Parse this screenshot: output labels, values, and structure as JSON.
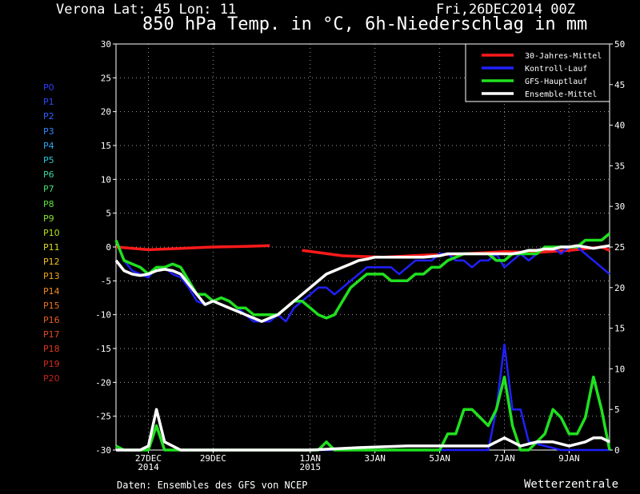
{
  "header": {
    "location": "Verona   Lat: 45 Lon: 11",
    "date": "Fri,26DEC2014 00Z",
    "title": "850 hPa Temp. in °C, 6h-Niederschlag in mm"
  },
  "footer": {
    "source": "Daten: Ensembles des GFS von NCEP",
    "brand": "Wetterzentrale"
  },
  "members": [
    {
      "label": "P0",
      "color": "#2b3bff"
    },
    {
      "label": "P1",
      "color": "#2f48ff"
    },
    {
      "label": "P2",
      "color": "#3060ff"
    },
    {
      "label": "P3",
      "color": "#2f86ff"
    },
    {
      "label": "P4",
      "color": "#2aa8f0"
    },
    {
      "label": "P5",
      "color": "#2bc6d8"
    },
    {
      "label": "P6",
      "color": "#35d8a0"
    },
    {
      "label": "P7",
      "color": "#44e070"
    },
    {
      "label": "P8",
      "color": "#5ee23e"
    },
    {
      "label": "P9",
      "color": "#86e22a"
    },
    {
      "label": "P10",
      "color": "#b4e21f"
    },
    {
      "label": "P11",
      "color": "#ddd91a"
    },
    {
      "label": "P12",
      "color": "#eec01a"
    },
    {
      "label": "P13",
      "color": "#f2a31a"
    },
    {
      "label": "P14",
      "color": "#f28a1c"
    },
    {
      "label": "P15",
      "color": "#ee731e"
    },
    {
      "label": "P16",
      "color": "#e95f20"
    },
    {
      "label": "P17",
      "color": "#e34b20"
    },
    {
      "label": "P18",
      "color": "#da3a1f"
    },
    {
      "label": "P19",
      "color": "#cf2d1d"
    },
    {
      "label": "P20",
      "color": "#c2231b"
    }
  ],
  "chart_data": {
    "type": "line",
    "grid": true,
    "legend_position": "top-right",
    "x_range": [
      0,
      61
    ],
    "x_unit": "6-hourly steps from 26DEC2014 00Z",
    "ylim_left": [
      -30,
      30
    ],
    "ylim_right": [
      0,
      50
    ],
    "yticks_left": [
      "30",
      "25",
      "20",
      "15",
      "10",
      "5",
      "0",
      "-5",
      "-10",
      "-15",
      "-20",
      "-25",
      "-30"
    ],
    "yticks_right": [
      "50",
      "45",
      "40",
      "35",
      "30",
      "25",
      "20",
      "15",
      "10",
      "5",
      "0"
    ],
    "xticks": [
      {
        "x": 4,
        "line1": "27DEC",
        "line2": "2014"
      },
      {
        "x": 12,
        "line1": "29DEC",
        "line2": ""
      },
      {
        "x": 24,
        "line1": "1JAN",
        "line2": "2015"
      },
      {
        "x": 32,
        "line1": "3JAN",
        "line2": ""
      },
      {
        "x": 40,
        "line1": "5JAN",
        "line2": ""
      },
      {
        "x": 48,
        "line1": "7JAN",
        "line2": ""
      },
      {
        "x": 56,
        "line1": "9JAN",
        "line2": ""
      }
    ],
    "legend": [
      {
        "label": "30-Jahres-Mittel",
        "color": "#ff1a1a"
      },
      {
        "label": "Kontroll-Lauf",
        "color": "#2020ff"
      },
      {
        "label": "GFS-Hauptlauf",
        "color": "#20e020"
      },
      {
        "label": "Ensemble-Mittel",
        "color": "#ffffff"
      }
    ],
    "temperature_series": [
      {
        "name": "30-Jahres-Mittel",
        "color": "#ff1a1a",
        "width": 3.5,
        "points": [
          [
            0,
            0
          ],
          [
            4,
            -0.4
          ],
          [
            8,
            -0.2
          ],
          [
            12,
            0
          ],
          [
            16,
            0.1
          ],
          [
            19,
            0.2
          ],
          [
            null,
            null
          ],
          [
            23,
            -0.5
          ],
          [
            28,
            -1.3
          ],
          [
            33,
            -1.5
          ],
          [
            38,
            -1.2
          ],
          [
            43,
            -1
          ],
          [
            48,
            -0.7
          ],
          [
            52,
            -0.8
          ],
          [
            56,
            -0.5
          ],
          [
            60,
            0
          ],
          [
            61,
            -0.5
          ]
        ]
      },
      {
        "name": "Kontroll-Lauf",
        "color": "#2020ff",
        "width": 2.5,
        "points": [
          [
            0,
            1
          ],
          [
            1,
            -2
          ],
          [
            2,
            -3.5
          ],
          [
            3,
            -4
          ],
          [
            4,
            -4.5
          ],
          [
            5,
            -3
          ],
          [
            6,
            -3
          ],
          [
            7,
            -4
          ],
          [
            8,
            -4.5
          ],
          [
            9,
            -6
          ],
          [
            10,
            -8
          ],
          [
            11,
            -8.5
          ],
          [
            12,
            -8
          ],
          [
            13,
            -7.5
          ],
          [
            14,
            -8
          ],
          [
            15,
            -9
          ],
          [
            16,
            -10
          ],
          [
            17,
            -11
          ],
          [
            18,
            -11
          ],
          [
            19,
            -11
          ],
          [
            20,
            -10
          ],
          [
            21,
            -11
          ],
          [
            22,
            -9
          ],
          [
            23,
            -8
          ],
          [
            24,
            -7
          ],
          [
            25,
            -6
          ],
          [
            26,
            -6
          ],
          [
            27,
            -7
          ],
          [
            28,
            -6
          ],
          [
            29,
            -5
          ],
          [
            30,
            -4
          ],
          [
            31,
            -3
          ],
          [
            32,
            -3
          ],
          [
            33,
            -3
          ],
          [
            34,
            -3
          ],
          [
            35,
            -4
          ],
          [
            36,
            -3
          ],
          [
            37,
            -2
          ],
          [
            38,
            -2
          ],
          [
            39,
            -2
          ],
          [
            40,
            -1
          ],
          [
            41,
            -1
          ],
          [
            42,
            -2
          ],
          [
            43,
            -2
          ],
          [
            44,
            -3
          ],
          [
            45,
            -2
          ],
          [
            46,
            -2
          ],
          [
            47,
            -1
          ],
          [
            48,
            -3
          ],
          [
            49,
            -2
          ],
          [
            50,
            -1
          ],
          [
            51,
            -2
          ],
          [
            52,
            -1
          ],
          [
            53,
            0
          ],
          [
            54,
            0
          ],
          [
            55,
            -1
          ],
          [
            56,
            0
          ],
          [
            57,
            0
          ],
          [
            58,
            -1
          ],
          [
            59,
            -2
          ],
          [
            60,
            -3
          ],
          [
            61,
            -4
          ]
        ]
      },
      {
        "name": "GFS-Hauptlauf",
        "color": "#20e020",
        "width": 3.5,
        "points": [
          [
            0,
            1
          ],
          [
            1,
            -2
          ],
          [
            2,
            -2.5
          ],
          [
            3,
            -3
          ],
          [
            4,
            -4
          ],
          [
            5,
            -3
          ],
          [
            6,
            -3
          ],
          [
            7,
            -2.5
          ],
          [
            8,
            -3
          ],
          [
            9,
            -5
          ],
          [
            10,
            -7
          ],
          [
            11,
            -7
          ],
          [
            12,
            -8
          ],
          [
            13,
            -7.5
          ],
          [
            14,
            -8
          ],
          [
            15,
            -9
          ],
          [
            16,
            -9
          ],
          [
            17,
            -10
          ],
          [
            18,
            -10
          ],
          [
            19,
            -10
          ],
          [
            20,
            -10
          ],
          [
            21,
            -9
          ],
          [
            22,
            -8
          ],
          [
            23,
            -8
          ],
          [
            24,
            -9
          ],
          [
            25,
            -10
          ],
          [
            26,
            -10.5
          ],
          [
            27,
            -10
          ],
          [
            28,
            -8
          ],
          [
            29,
            -6
          ],
          [
            30,
            -5
          ],
          [
            31,
            -4
          ],
          [
            32,
            -4
          ],
          [
            33,
            -4
          ],
          [
            34,
            -5
          ],
          [
            35,
            -5
          ],
          [
            36,
            -5
          ],
          [
            37,
            -4
          ],
          [
            38,
            -4
          ],
          [
            39,
            -3
          ],
          [
            40,
            -3
          ],
          [
            41,
            -2
          ],
          [
            42,
            -1.5
          ],
          [
            43,
            -1
          ],
          [
            44,
            -1
          ],
          [
            45,
            -1
          ],
          [
            46,
            -1
          ],
          [
            47,
            -2
          ],
          [
            48,
            -2
          ],
          [
            49,
            -1
          ],
          [
            50,
            -1
          ],
          [
            51,
            -1
          ],
          [
            52,
            -1
          ],
          [
            53,
            0
          ],
          [
            54,
            0
          ],
          [
            55,
            0
          ],
          [
            56,
            0
          ],
          [
            57,
            0
          ],
          [
            58,
            1
          ],
          [
            59,
            1
          ],
          [
            60,
            1
          ],
          [
            61,
            2
          ]
        ]
      },
      {
        "name": "Ensemble-Mittel",
        "color": "#ffffff",
        "width": 3.5,
        "points": [
          [
            0,
            -2
          ],
          [
            1,
            -3.5
          ],
          [
            2,
            -4
          ],
          [
            3,
            -4.2
          ],
          [
            4,
            -4
          ],
          [
            5,
            -3.5
          ],
          [
            6,
            -3.3
          ],
          [
            7,
            -3.5
          ],
          [
            8,
            -4
          ],
          [
            9,
            -5.5
          ],
          [
            10,
            -7
          ],
          [
            11,
            -8.5
          ],
          [
            12,
            -8
          ],
          [
            13,
            -8.5
          ],
          [
            14,
            -9
          ],
          [
            15,
            -9.5
          ],
          [
            16,
            -10
          ],
          [
            17,
            -10.5
          ],
          [
            18,
            -11
          ],
          [
            19,
            -10.5
          ],
          [
            20,
            -10
          ],
          [
            21,
            -9
          ],
          [
            22,
            -8
          ],
          [
            23,
            -7
          ],
          [
            24,
            -6
          ],
          [
            25,
            -5
          ],
          [
            26,
            -4
          ],
          [
            27,
            -3.5
          ],
          [
            28,
            -3
          ],
          [
            29,
            -2.5
          ],
          [
            30,
            -2
          ],
          [
            31,
            -1.8
          ],
          [
            32,
            -1.5
          ],
          [
            33,
            -1.5
          ],
          [
            34,
            -1.5
          ],
          [
            35,
            -1.5
          ],
          [
            36,
            -1.5
          ],
          [
            37,
            -1.5
          ],
          [
            38,
            -1.5
          ],
          [
            39,
            -1.4
          ],
          [
            40,
            -1.3
          ],
          [
            41,
            -1
          ],
          [
            42,
            -1
          ],
          [
            43,
            -1
          ],
          [
            44,
            -1
          ],
          [
            45,
            -1
          ],
          [
            46,
            -1
          ],
          [
            47,
            -1
          ],
          [
            48,
            -1
          ],
          [
            49,
            -1
          ],
          [
            50,
            -0.8
          ],
          [
            51,
            -0.5
          ],
          [
            52,
            -0.5
          ],
          [
            53,
            -0.3
          ],
          [
            54,
            -0.3
          ],
          [
            55,
            0
          ],
          [
            56,
            0
          ],
          [
            57,
            0.2
          ],
          [
            58,
            0
          ],
          [
            59,
            -0.2
          ],
          [
            60,
            0
          ],
          [
            61,
            0.2
          ]
        ]
      }
    ],
    "precipitation_series": [
      {
        "name": "Kontroll-Lauf",
        "color": "#2020ff",
        "width": 2.5,
        "points": [
          [
            0,
            0
          ],
          [
            4,
            0
          ],
          [
            5,
            3
          ],
          [
            6,
            0
          ],
          [
            7,
            0
          ],
          [
            30,
            0
          ],
          [
            40,
            0
          ],
          [
            46,
            0
          ],
          [
            47,
            5
          ],
          [
            48,
            13
          ],
          [
            49,
            5
          ],
          [
            50,
            5
          ],
          [
            51,
            1
          ],
          [
            55,
            0
          ],
          [
            61,
            0
          ]
        ]
      },
      {
        "name": "GFS-Hauptlauf",
        "color": "#20e020",
        "width": 3.5,
        "points": [
          [
            0,
            0.5
          ],
          [
            1,
            0
          ],
          [
            4,
            0
          ],
          [
            5,
            3
          ],
          [
            6,
            0
          ],
          [
            7,
            0
          ],
          [
            25,
            0
          ],
          [
            26,
            1
          ],
          [
            27,
            0
          ],
          [
            40,
            0
          ],
          [
            41,
            2
          ],
          [
            42,
            2
          ],
          [
            43,
            5
          ],
          [
            44,
            5
          ],
          [
            45,
            4
          ],
          [
            46,
            3
          ],
          [
            47,
            5
          ],
          [
            48,
            9
          ],
          [
            49,
            3
          ],
          [
            50,
            0
          ],
          [
            51,
            0
          ],
          [
            52,
            1
          ],
          [
            53,
            2
          ],
          [
            54,
            5
          ],
          [
            55,
            4
          ],
          [
            56,
            2
          ],
          [
            57,
            2
          ],
          [
            58,
            4
          ],
          [
            59,
            9
          ],
          [
            60,
            5
          ],
          [
            61,
            0
          ]
        ]
      },
      {
        "name": "Ensemble-Mittel",
        "color": "#ffffff",
        "width": 3.5,
        "points": [
          [
            0,
            0
          ],
          [
            3,
            0
          ],
          [
            4,
            0.5
          ],
          [
            5,
            5
          ],
          [
            6,
            1
          ],
          [
            7,
            0.5
          ],
          [
            8,
            0
          ],
          [
            24,
            0
          ],
          [
            30,
            0.3
          ],
          [
            36,
            0.5
          ],
          [
            42,
            0.5
          ],
          [
            46,
            0.5
          ],
          [
            47,
            1
          ],
          [
            48,
            1.5
          ],
          [
            49,
            1
          ],
          [
            50,
            0.5
          ],
          [
            52,
            1
          ],
          [
            54,
            1
          ],
          [
            56,
            0.5
          ],
          [
            58,
            1
          ],
          [
            59,
            1.5
          ],
          [
            60,
            1.5
          ],
          [
            61,
            1
          ]
        ]
      }
    ]
  }
}
